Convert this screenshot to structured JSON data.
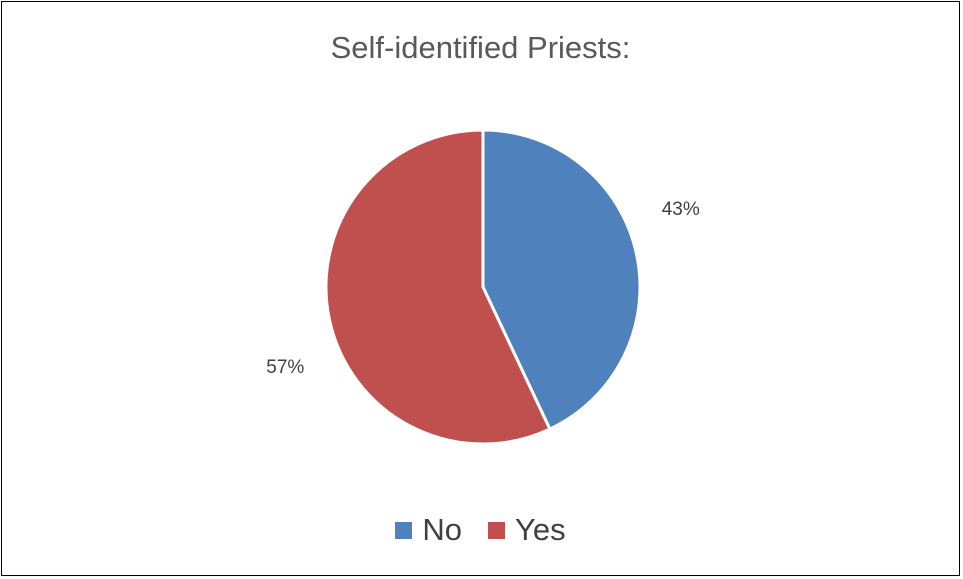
{
  "chart_data": {
    "type": "pie",
    "title": "Self-identified Priests:",
    "categories": [
      "No",
      "Yes"
    ],
    "values": [
      43,
      57
    ],
    "labels": [
      "43%",
      "57%"
    ],
    "colors": [
      "#4F81BD",
      "#C0504D"
    ],
    "legend_position": "bottom"
  }
}
